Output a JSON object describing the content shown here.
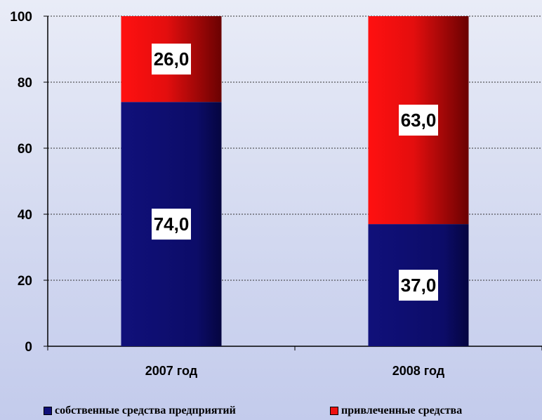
{
  "chart_data": {
    "type": "bar",
    "stacked": true,
    "categories": [
      "2007 год",
      "2008 год"
    ],
    "series": [
      {
        "name": "собственные средства предприятий",
        "values": [
          74.0,
          37.0
        ],
        "labels": [
          "74,0",
          "37,0"
        ],
        "color": "#10107a"
      },
      {
        "name": "привлеченные средства",
        "values": [
          26.0,
          63.0
        ],
        "labels": [
          "26,0",
          "63,0"
        ],
        "color": "#ee1111"
      }
    ],
    "ylim": [
      0,
      100
    ],
    "yticks": [
      "0",
      "20",
      "40",
      "60",
      "80",
      "100"
    ],
    "title": "",
    "xlabel": "",
    "ylabel": "",
    "grid": true,
    "legend_position": "bottom"
  }
}
